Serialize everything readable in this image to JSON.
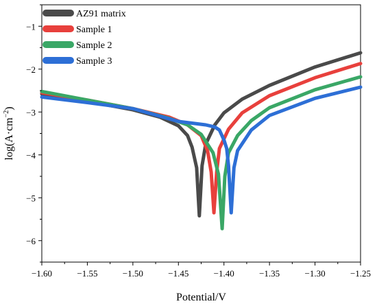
{
  "chart_data": {
    "type": "line",
    "xlabel": "Potential/V",
    "ylabel_text": "log(A·cm",
    "ylabel_sup": "−2",
    "ylabel_close": ")",
    "xlim": [
      -1.6,
      -1.25
    ],
    "ylim": [
      -6.5,
      -0.5
    ],
    "x_ticks": [
      -1.6,
      -1.55,
      -1.5,
      -1.45,
      -1.4,
      -1.35,
      -1.3,
      -1.25
    ],
    "x_tick_labels": [
      "−1.60",
      "−1.55",
      "−1.50",
      "−1.45",
      "−1.40",
      "−1.35",
      "−1.30",
      "−1.25"
    ],
    "y_ticks": [
      -6,
      -5,
      -4,
      -3,
      -2,
      -1
    ],
    "y_tick_labels": [
      "−6",
      "−5",
      "−4",
      "−3",
      "−2",
      "−1"
    ],
    "grid": false,
    "legend_position": "top-left",
    "series": [
      {
        "name": "AZ91 matrix",
        "color": "#4a4a4a",
        "points": [
          [
            -1.6,
            -2.58
          ],
          [
            -1.55,
            -2.75
          ],
          [
            -1.5,
            -2.95
          ],
          [
            -1.47,
            -3.12
          ],
          [
            -1.45,
            -3.32
          ],
          [
            -1.44,
            -3.55
          ],
          [
            -1.435,
            -3.82
          ],
          [
            -1.43,
            -4.3
          ],
          [
            -1.427,
            -5.42
          ],
          [
            -1.424,
            -4.25
          ],
          [
            -1.42,
            -3.75
          ],
          [
            -1.41,
            -3.3
          ],
          [
            -1.4,
            -3.02
          ],
          [
            -1.38,
            -2.7
          ],
          [
            -1.35,
            -2.38
          ],
          [
            -1.3,
            -1.95
          ],
          [
            -1.25,
            -1.62
          ]
        ]
      },
      {
        "name": "Sample 1",
        "color": "#e8403c",
        "points": [
          [
            -1.6,
            -2.55
          ],
          [
            -1.55,
            -2.72
          ],
          [
            -1.5,
            -2.92
          ],
          [
            -1.46,
            -3.12
          ],
          [
            -1.44,
            -3.3
          ],
          [
            -1.425,
            -3.55
          ],
          [
            -1.418,
            -3.9
          ],
          [
            -1.414,
            -4.4
          ],
          [
            -1.411,
            -5.35
          ],
          [
            -1.408,
            -4.4
          ],
          [
            -1.405,
            -3.85
          ],
          [
            -1.395,
            -3.4
          ],
          [
            -1.38,
            -3.02
          ],
          [
            -1.35,
            -2.62
          ],
          [
            -1.3,
            -2.2
          ],
          [
            -1.25,
            -1.87
          ]
        ]
      },
      {
        "name": "Sample 2",
        "color": "#3aa766",
        "points": [
          [
            -1.6,
            -2.52
          ],
          [
            -1.55,
            -2.72
          ],
          [
            -1.5,
            -2.92
          ],
          [
            -1.46,
            -3.15
          ],
          [
            -1.44,
            -3.3
          ],
          [
            -1.425,
            -3.52
          ],
          [
            -1.412,
            -3.95
          ],
          [
            -1.406,
            -4.45
          ],
          [
            -1.402,
            -5.72
          ],
          [
            -1.399,
            -4.5
          ],
          [
            -1.395,
            -3.95
          ],
          [
            -1.385,
            -3.55
          ],
          [
            -1.37,
            -3.2
          ],
          [
            -1.35,
            -2.9
          ],
          [
            -1.3,
            -2.48
          ],
          [
            -1.25,
            -2.18
          ]
        ]
      },
      {
        "name": "Sample 3",
        "color": "#2d6fd6",
        "points": [
          [
            -1.6,
            -2.65
          ],
          [
            -1.55,
            -2.78
          ],
          [
            -1.5,
            -2.92
          ],
          [
            -1.47,
            -3.1
          ],
          [
            -1.45,
            -3.22
          ],
          [
            -1.42,
            -3.3
          ],
          [
            -1.41,
            -3.35
          ],
          [
            -1.405,
            -3.42
          ],
          [
            -1.4,
            -3.65
          ],
          [
            -1.397,
            -3.85
          ],
          [
            -1.395,
            -4.25
          ],
          [
            -1.392,
            -5.35
          ],
          [
            -1.389,
            -4.3
          ],
          [
            -1.385,
            -3.9
          ],
          [
            -1.37,
            -3.42
          ],
          [
            -1.35,
            -3.08
          ],
          [
            -1.3,
            -2.68
          ],
          [
            -1.25,
            -2.42
          ]
        ]
      }
    ]
  }
}
